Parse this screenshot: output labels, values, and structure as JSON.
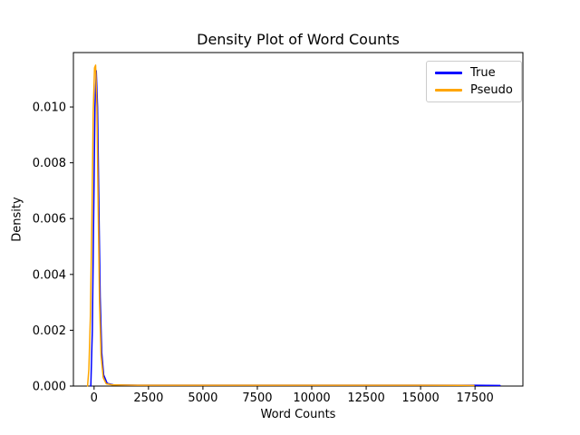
{
  "chart_data": {
    "type": "line",
    "title": "Density Plot of Word Counts",
    "xlabel": "Word Counts",
    "ylabel": "Density",
    "xlim": [
      -950,
      19700
    ],
    "ylim": [
      0,
      0.01195
    ],
    "x_ticks": [
      0,
      2500,
      5000,
      7500,
      10000,
      12500,
      15000,
      17500
    ],
    "x_tick_labels": [
      "0",
      "2500",
      "5000",
      "7500",
      "10000",
      "12500",
      "15000",
      "17500"
    ],
    "y_ticks": [
      0,
      0.002,
      0.004,
      0.006,
      0.008,
      0.01
    ],
    "y_tick_labels": [
      "0.000",
      "0.002",
      "0.004",
      "0.006",
      "0.008",
      "0.010"
    ],
    "grid": false,
    "background": "#ffffff",
    "axis_color": "#000000",
    "legend": {
      "position": "upper right",
      "entries": [
        {
          "label": "True",
          "color": "#0000ff"
        },
        {
          "label": "Pseudo",
          "color": "#ffa500"
        }
      ]
    },
    "series": [
      {
        "name": "True",
        "color": "#0000ff",
        "points": [
          [
            -150,
            0
          ],
          [
            -80,
            0.002
          ],
          [
            -20,
            0.006
          ],
          [
            40,
            0.01
          ],
          [
            100,
            0.0113
          ],
          [
            160,
            0.01
          ],
          [
            220,
            0.0065
          ],
          [
            280,
            0.0032
          ],
          [
            350,
            0.0012
          ],
          [
            440,
            0.0004
          ],
          [
            600,
            0.0001
          ],
          [
            900,
            4e-05
          ],
          [
            2000,
            3e-05
          ],
          [
            5000,
            3e-05
          ],
          [
            10000,
            3e-05
          ],
          [
            15000,
            3e-05
          ],
          [
            17500,
            3e-05
          ],
          [
            18650,
            2e-05
          ]
        ]
      },
      {
        "name": "Pseudo",
        "color": "#ffa500",
        "points": [
          [
            -300,
            0
          ],
          [
            -240,
            0.0006
          ],
          [
            -170,
            0.0025
          ],
          [
            -100,
            0.006
          ],
          [
            -40,
            0.0098
          ],
          [
            20,
            0.0114
          ],
          [
            70,
            0.0115
          ],
          [
            130,
            0.01
          ],
          [
            190,
            0.0063
          ],
          [
            250,
            0.003
          ],
          [
            320,
            0.0011
          ],
          [
            420,
            0.0003
          ],
          [
            560,
            8e-05
          ],
          [
            850,
            4e-05
          ],
          [
            2000,
            3e-05
          ],
          [
            5000,
            3e-05
          ],
          [
            10000,
            3e-05
          ],
          [
            15000,
            3e-05
          ],
          [
            17450,
            2e-05
          ]
        ]
      }
    ]
  }
}
